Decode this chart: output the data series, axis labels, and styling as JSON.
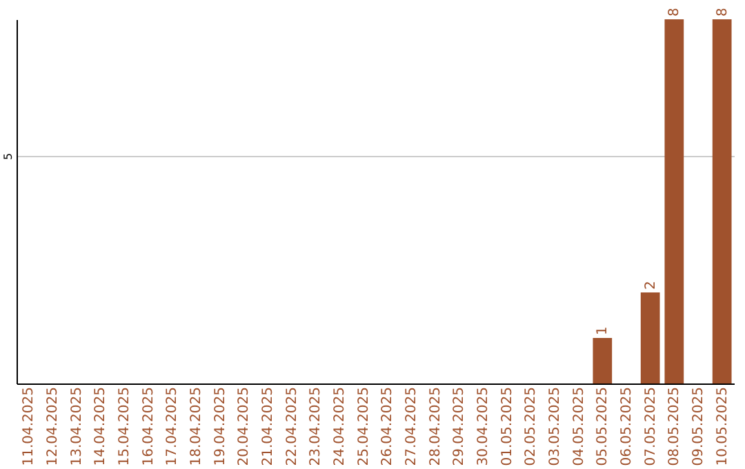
{
  "chart_data": {
    "type": "bar",
    "categories": [
      "11.04.2025",
      "12.04.2025",
      "13.04.2025",
      "14.04.2025",
      "15.04.2025",
      "16.04.2025",
      "17.04.2025",
      "18.04.2025",
      "19.04.2025",
      "20.04.2025",
      "21.04.2025",
      "22.04.2025",
      "23.04.2025",
      "24.04.2025",
      "25.04.2025",
      "26.04.2025",
      "27.04.2025",
      "28.04.2025",
      "29.04.2025",
      "30.04.2025",
      "01.05.2025",
      "02.05.2025",
      "03.05.2025",
      "04.05.2025",
      "05.05.2025",
      "06.05.2025",
      "07.05.2025",
      "08.05.2025",
      "09.05.2025",
      "10.05.2025"
    ],
    "values": [
      null,
      null,
      null,
      null,
      null,
      null,
      null,
      null,
      null,
      null,
      null,
      null,
      null,
      null,
      null,
      null,
      null,
      null,
      null,
      null,
      null,
      null,
      null,
      null,
      1,
      null,
      2,
      8,
      null,
      8
    ],
    "color": "#a0522d",
    "ylim": [
      0,
      8
    ],
    "yticks": [
      5
    ],
    "grid": "y",
    "data_labels": true
  }
}
